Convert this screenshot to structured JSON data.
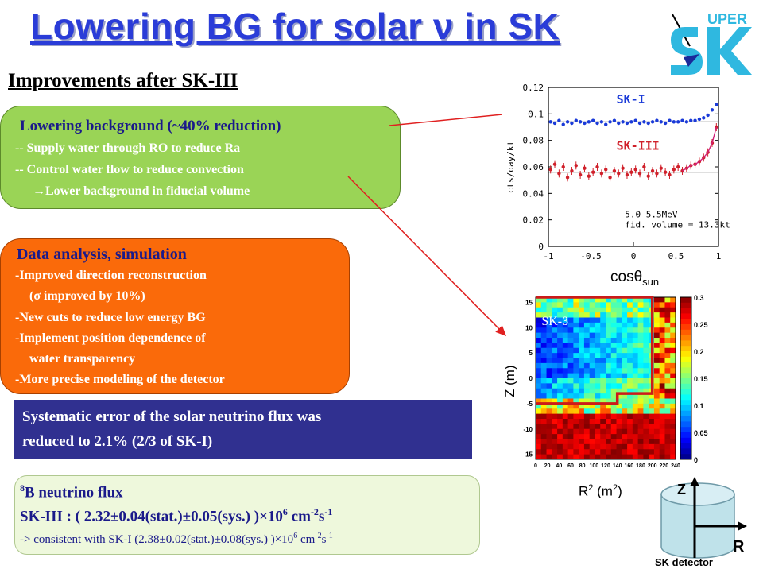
{
  "header": {
    "title": "Lowering BG for solar ν in SK",
    "subtitle": "Improvements after SK-III",
    "logo_text": "UPER",
    "logo_letters": "SK"
  },
  "background_box": {
    "heading": "Lowering background (~40% reduction)",
    "line1": "-- Supply water through RO to reduce Ra",
    "line2": "-- Control water flow to reduce convection",
    "line3": "→Lower background in fiducial volume"
  },
  "analysis_box": {
    "heading": "Data analysis, simulation",
    "line1": "-Improved direction reconstruction",
    "line2": "(σ improved by 10%)",
    "line3": "-New cuts to reduce low energy BG",
    "line4": "-Implement position dependence of",
    "line5": "water transparency",
    "line6": "-More precise modeling of the detector"
  },
  "systematic_box": {
    "line1": "Systematic error of the solar neutrino flux was",
    "line2": "reduced to 2.1% (2/3 of SK-I)"
  },
  "flux_box": {
    "heading_sup": "8",
    "heading": "B neutrino flux",
    "line1_a": "SK-III : ( 2.32±0.04(stat.)±0.05(sys.) )×10",
    "line1_e1": "6",
    "line1_b": " cm",
    "line1_e2": "-2",
    "line1_c": "s",
    "line1_e3": "-1",
    "line2_a": "-> consistent with SK-I (2.38±0.02(stat.)±0.08(sys.) )×10",
    "line2_e1": "6",
    "line2_b": " cm",
    "line2_e2": "-2",
    "line2_c": "s",
    "line2_e3": "-1"
  },
  "plot_labels": {
    "xlabel_main": "cosθ",
    "xlabel_sub": "sun",
    "heatmap_ylabel": "Z (m)",
    "heatmap_xlabel": "R",
    "heatmap_xlabel_sup": "2",
    "heatmap_xlabel_unit": " (m",
    "heatmap_xlabel_unit_sup": "2",
    "heatmap_xlabel_close": ")",
    "detector_z": "Z",
    "detector_r": "R",
    "detector_caption": "SK detector"
  },
  "chart_data": [
    {
      "type": "scatter",
      "ylabel": "cts/day/kt",
      "xlim": [
        -1,
        1
      ],
      "ylim": [
        0,
        0.12
      ],
      "x_ticks": [
        "-1",
        "-0.5",
        "0",
        "0.5",
        "1"
      ],
      "y_ticks": [
        "0",
        "0.02",
        "0.04",
        "0.06",
        "0.08",
        "0.1",
        "0.12"
      ],
      "annotations": [
        "5.0-5.5MeV",
        "fid. volume = 13.3kt"
      ],
      "colors": {
        "SK-I": "#1a3ad8",
        "SK-III": "#d0202a"
      },
      "series": [
        {
          "name": "SK-I",
          "flat_level": 0.094,
          "x": [
            -0.975,
            -0.925,
            -0.875,
            -0.825,
            -0.775,
            -0.725,
            -0.675,
            -0.625,
            -0.575,
            -0.525,
            -0.475,
            -0.425,
            -0.375,
            -0.325,
            -0.275,
            -0.225,
            -0.175,
            -0.125,
            -0.075,
            -0.025,
            0.025,
            0.075,
            0.125,
            0.175,
            0.225,
            0.275,
            0.325,
            0.375,
            0.425,
            0.475,
            0.525,
            0.575,
            0.625,
            0.675,
            0.725,
            0.775,
            0.825,
            0.875,
            0.925,
            0.975
          ],
          "y": [
            0.094,
            0.093,
            0.095,
            0.092,
            0.094,
            0.093,
            0.095,
            0.094,
            0.093,
            0.094,
            0.095,
            0.093,
            0.094,
            0.092,
            0.094,
            0.095,
            0.093,
            0.094,
            0.093,
            0.094,
            0.095,
            0.093,
            0.094,
            0.093,
            0.094,
            0.095,
            0.094,
            0.093,
            0.095,
            0.094,
            0.094,
            0.095,
            0.094,
            0.095,
            0.095,
            0.096,
            0.097,
            0.099,
            0.103,
            0.107
          ]
        },
        {
          "name": "SK-III",
          "flat_level": 0.056,
          "x": [
            -0.975,
            -0.925,
            -0.875,
            -0.825,
            -0.775,
            -0.725,
            -0.675,
            -0.625,
            -0.575,
            -0.525,
            -0.475,
            -0.425,
            -0.375,
            -0.325,
            -0.275,
            -0.225,
            -0.175,
            -0.125,
            -0.075,
            -0.025,
            0.025,
            0.075,
            0.125,
            0.175,
            0.225,
            0.275,
            0.325,
            0.375,
            0.425,
            0.475,
            0.525,
            0.575,
            0.625,
            0.675,
            0.725,
            0.775,
            0.825,
            0.875,
            0.925,
            0.975
          ],
          "y": [
            0.058,
            0.062,
            0.055,
            0.06,
            0.052,
            0.057,
            0.061,
            0.054,
            0.059,
            0.053,
            0.056,
            0.06,
            0.055,
            0.058,
            0.052,
            0.057,
            0.055,
            0.059,
            0.054,
            0.056,
            0.058,
            0.055,
            0.06,
            0.053,
            0.057,
            0.055,
            0.059,
            0.056,
            0.054,
            0.058,
            0.06,
            0.057,
            0.059,
            0.061,
            0.062,
            0.064,
            0.067,
            0.071,
            0.078,
            0.09
          ]
        }
      ]
    },
    {
      "type": "heatmap",
      "panel_label": "SK-3",
      "xlabel": "R² (m²)",
      "ylabel": "Z (m)",
      "xlim": [
        0,
        240
      ],
      "ylim": [
        -16,
        16
      ],
      "x_ticks": [
        "0",
        "20",
        "40",
        "60",
        "80",
        "100",
        "120",
        "140",
        "160",
        "180",
        "200",
        "220",
        "240"
      ],
      "y_ticks": [
        "15",
        "10",
        "5",
        "0",
        "-5",
        "-10",
        "-15"
      ],
      "colorbar_ticks": [
        "0.3",
        "0.25",
        "0.2",
        "0.15",
        "0.1",
        "0.05",
        "0"
      ],
      "color_range": [
        0,
        0.3
      ],
      "fiducial_outline_color": "#cc1a1a"
    }
  ]
}
